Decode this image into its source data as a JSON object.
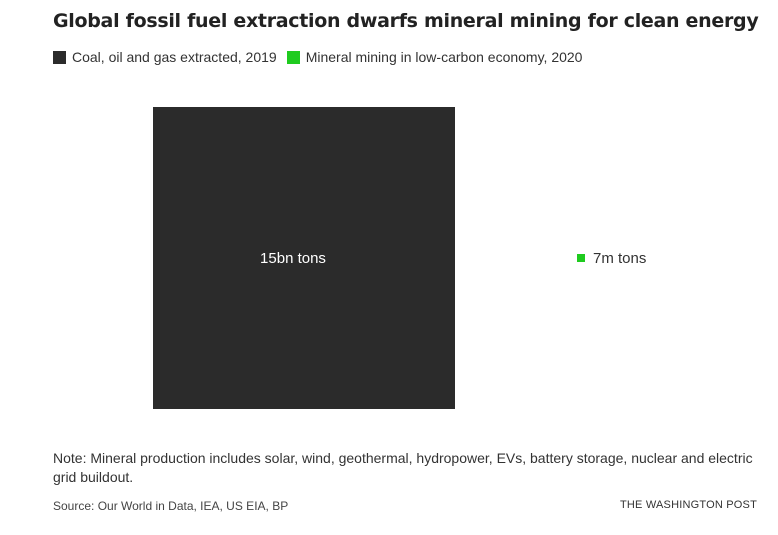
{
  "colors": {
    "fossil": "#2b2b2b",
    "mineral": "#1fcb1f",
    "label_on_dark": "#ffffff",
    "label_on_light": "#333333"
  },
  "chart_data": {
    "type": "area",
    "title": "Global fossil fuel extraction dwarfs mineral mining for clean energy",
    "series": [
      {
        "name": "Coal, oil and gas extracted, 2019",
        "value_tons": 15000000000,
        "label": "15bn tons",
        "color": "#2b2b2b"
      },
      {
        "name": "Mineral mining in low-carbon economy, 2020",
        "value_tons": 7000000,
        "label": "7m tons",
        "color": "#1fcb1f"
      }
    ],
    "legend_position": "top-left"
  },
  "footer": {
    "note": "Note: Mineral production includes solar, wind, geothermal, hydropower, EVs, battery storage, nuclear and electric grid buildout.",
    "source": "Source: Our World in Data, IEA, US EIA, BP",
    "brand": "THE WASHINGTON POST"
  }
}
